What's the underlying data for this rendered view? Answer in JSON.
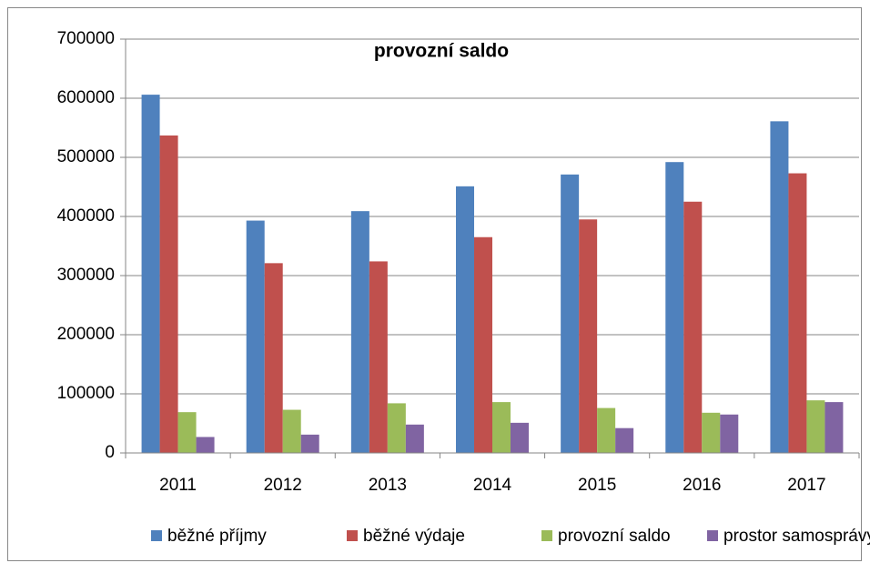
{
  "chart_data": {
    "type": "bar",
    "title": "provozní saldo",
    "categories": [
      "2011",
      "2012",
      "2013",
      "2014",
      "2015",
      "2016",
      "2017"
    ],
    "series": [
      {
        "name": "běžné příjmy",
        "color": "#4f81bd",
        "values": [
          606000,
          393000,
          409000,
          451000,
          471000,
          492000,
          561000
        ]
      },
      {
        "name": "běžné výdaje",
        "color": "#c0504d",
        "values": [
          537000,
          321000,
          324000,
          365000,
          395000,
          425000,
          473000
        ]
      },
      {
        "name": "provozní saldo",
        "color": "#9bbb59",
        "values": [
          69000,
          73000,
          84000,
          86000,
          76000,
          68000,
          89000
        ]
      },
      {
        "name": "prostor samosprávy",
        "color": "#8064a2",
        "values": [
          27000,
          31000,
          48000,
          51000,
          42000,
          65000,
          86000
        ]
      }
    ],
    "ylim": [
      0,
      700000
    ],
    "yticks": [
      0,
      100000,
      200000,
      300000,
      400000,
      500000,
      600000,
      700000
    ],
    "grid": true,
    "legend": "bottom"
  }
}
